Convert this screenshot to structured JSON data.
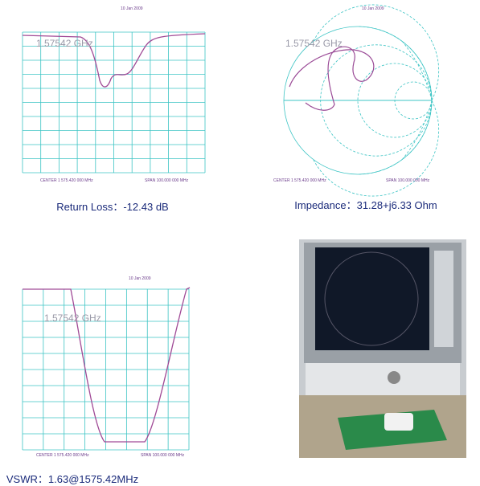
{
  "panels": [
    {
      "marker": "1.57542 GHz",
      "date": "10 Jan 2009",
      "center": "CENTER 1 575.420 000 MHz",
      "span": "SPAN 100.000 000 MHz",
      "caption": "Return Loss：-12.43 dB"
    },
    {
      "marker": "1.57542 GHz",
      "date": "10 Jan 2009",
      "center": "CENTER 1 575.420 000 MHz",
      "span": "SPAN 100.000 000 MHz",
      "caption": "Impedance：31.28+j6.33 Ohm"
    },
    {
      "marker": "1.57542 GHz",
      "date": "10 Jan 2009",
      "center": "CENTER 1 575.420 000 MHz",
      "span": "SPAN 100.000 000 MHz",
      "caption": "VSWR：1.63@1575.42MHz"
    }
  ]
}
